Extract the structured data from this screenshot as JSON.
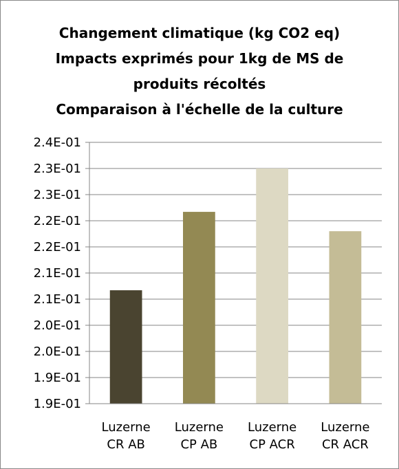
{
  "chart_data": {
    "type": "bar",
    "title": "Changement climatique  (kg CO2 eq)\nImpacts exprimés pour 1kg de MS de\nproduits récoltés\nComparaison à l'échelle de la culture",
    "categories": [
      "Luzerne\nCR AB",
      "Luzerne\nCP AB",
      "Luzerne\nCP ACR",
      "Luzerne\nCR ACR"
    ],
    "values": [
      0.2117,
      0.2267,
      0.235,
      0.223
    ],
    "colors": [
      "#4a4430",
      "#938953",
      "#ddd9c3",
      "#c4bc96"
    ],
    "ylim": [
      0.19,
      0.24
    ],
    "yticks": [
      {
        "value": 0.19,
        "label": "1.9E-01"
      },
      {
        "value": 0.195,
        "label": "1.9E-01"
      },
      {
        "value": 0.2,
        "label": "2.0E-01"
      },
      {
        "value": 0.205,
        "label": "2.0E-01"
      },
      {
        "value": 0.21,
        "label": "2.1E-01"
      },
      {
        "value": 0.215,
        "label": "2.1E-01"
      },
      {
        "value": 0.22,
        "label": "2.2E-01"
      },
      {
        "value": 0.225,
        "label": "2.2E-01"
      },
      {
        "value": 0.23,
        "label": "2.3E-01"
      },
      {
        "value": 0.235,
        "label": "2.3E-01"
      },
      {
        "value": 0.24,
        "label": "2.4E-01"
      }
    ],
    "grid": true
  }
}
